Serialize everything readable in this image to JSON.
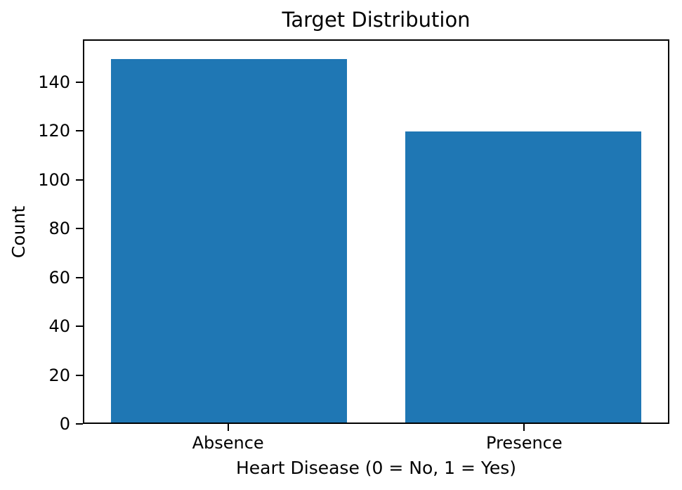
{
  "chart_data": {
    "type": "bar",
    "title": "Target Distribution",
    "xlabel": "Heart Disease (0 = No, 1 = Yes)",
    "ylabel": "Count",
    "categories": [
      "Absence",
      "Presence"
    ],
    "values": [
      150,
      120
    ],
    "yticks": [
      0,
      20,
      40,
      60,
      80,
      100,
      120,
      140
    ],
    "ylim": [
      0,
      157.5
    ],
    "xlim": [
      -0.49,
      1.49
    ],
    "bar_width": 0.8,
    "bar_color": "#1f77b4",
    "axes_color": "#000000",
    "background": "#ffffff",
    "grid": false,
    "legend": "none"
  }
}
